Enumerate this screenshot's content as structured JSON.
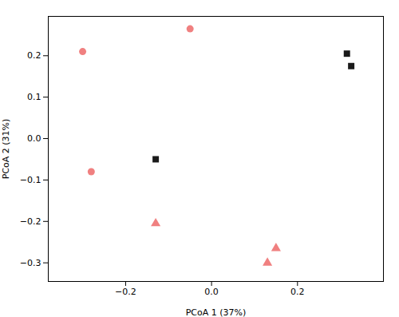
{
  "chart_data": {
    "type": "scatter",
    "xlabel": "PCoA 1 (37%)",
    "ylabel": "PCoA 2 (31%)",
    "series": [
      {
        "marker": "circle",
        "color": "#F08080",
        "x": [
          -0.3,
          -0.05,
          -0.28
        ],
        "values": [
          0.21,
          0.265,
          -0.08
        ]
      },
      {
        "marker": "square",
        "color": "#1a1a1a",
        "x": [
          -0.13,
          0.315,
          0.325
        ],
        "values": [
          -0.05,
          0.205,
          0.175
        ]
      },
      {
        "marker": "triangle",
        "color": "#F08080",
        "x": [
          -0.13,
          0.15,
          0.13
        ],
        "values": [
          -0.205,
          -0.265,
          -0.3
        ]
      }
    ],
    "xlim": [
      -0.38,
      0.4
    ],
    "ylim": [
      -0.345,
      0.295
    ],
    "xticks": [
      {
        "value": -0.2,
        "label": "−0.2"
      },
      {
        "value": 0,
        "label": "0.0"
      },
      0.2
    ],
    "yticks": [
      {
        "value": -0.3,
        "label": "−0.3"
      },
      {
        "value": -0.2,
        "label": "−0.2"
      },
      {
        "value": -0.1,
        "label": "−0.1"
      },
      {
        "value": 0,
        "label": "0.0"
      },
      0.1,
      0.2
    ],
    "grid": false
  }
}
